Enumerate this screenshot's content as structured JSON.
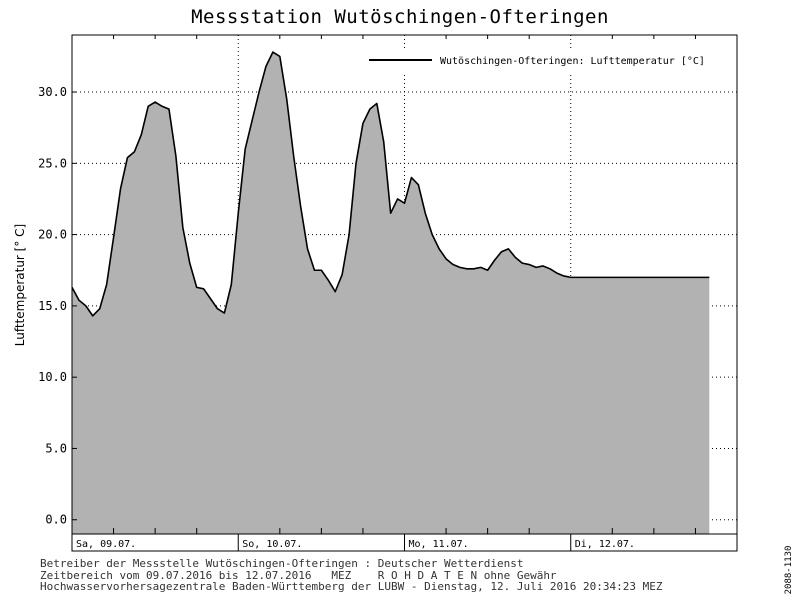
{
  "chart_data": {
    "type": "area",
    "title": "Messstation Wutöschingen-Ofteringen",
    "ylabel": "Lufttemperatur [° C]",
    "xlabel": "",
    "ylim": [
      -1,
      34
    ],
    "yticks": [
      "0.0",
      "5.0",
      "10.0",
      "15.0",
      "20.0",
      "25.0",
      "30.0"
    ],
    "xlim": [
      "2016-07-09 00:00",
      "2016-07-12 24:00"
    ],
    "day_labels": [
      "Sa, 09.07.",
      "So, 10.07.",
      "Mo, 11.07.",
      "Di, 12.07."
    ],
    "grid": true,
    "legend_position": "top-right",
    "series": [
      {
        "name": "Wutöschingen-Ofteringen: Lufttemperatur [°C]",
        "fill_color": "#b2b2b2",
        "line_color": "#000000",
        "x_hours": [
          0,
          1,
          2,
          3,
          4,
          5,
          6,
          7,
          8,
          9,
          10,
          11,
          12,
          13,
          14,
          15,
          16,
          17,
          18,
          19,
          20,
          21,
          22,
          23,
          24,
          25,
          26,
          27,
          28,
          29,
          30,
          31,
          32,
          33,
          34,
          35,
          36,
          37,
          38,
          39,
          40,
          41,
          42,
          43,
          44,
          45,
          46,
          47,
          48,
          49,
          50,
          51,
          52,
          53,
          54,
          55,
          56,
          57,
          58,
          59,
          60,
          61,
          62,
          63,
          64,
          65,
          66,
          67,
          68,
          69,
          70,
          71,
          72,
          73,
          74,
          75,
          76,
          77,
          78,
          79,
          80,
          81,
          82,
          83,
          84,
          85,
          86,
          87,
          88,
          89,
          90,
          91,
          92
        ],
        "values": [
          16.3,
          15.4,
          15.0,
          14.3,
          14.8,
          16.5,
          19.8,
          23.2,
          25.4,
          25.8,
          27.0,
          29.0,
          29.3,
          29.0,
          28.8,
          25.5,
          20.5,
          18.0,
          16.3,
          16.2,
          15.5,
          14.8,
          14.5,
          16.5,
          21.5,
          26.0,
          28.0,
          30.0,
          31.8,
          32.8,
          32.5,
          29.5,
          25.5,
          22.0,
          19.0,
          17.5,
          17.5,
          16.8,
          16.0,
          17.2,
          20.0,
          25.0,
          27.8,
          28.8,
          29.2,
          26.5,
          21.5,
          22.5,
          22.2,
          24.0,
          23.5,
          21.5,
          20.0,
          19.0,
          18.3,
          17.9,
          17.7,
          17.6,
          17.6,
          17.7,
          17.5,
          18.2,
          18.8,
          19.0,
          18.4,
          18.0,
          17.9,
          17.7,
          17.8,
          17.6,
          17.3,
          17.1,
          17.0,
          17.0,
          17.0,
          17.0,
          17.0,
          17.0,
          17.0,
          17.0,
          17.0,
          17.0,
          17.0,
          17.0,
          17.0,
          17.0,
          17.0,
          17.0,
          17.0,
          17.0,
          17.0,
          17.0,
          17.0
        ]
      }
    ]
  },
  "footer": {
    "line1": "Betreiber der Messstelle Wutöschingen-Ofteringen : Deutscher Wetterdienst",
    "line2": "Zeitbereich vom 09.07.2016 bis 12.07.2016   MEZ    R O H D A T E N ohne Gewähr",
    "line3": "Hochwasservorhersagezentrale Baden-Württemberg der LUBW - Dienstag, 12. Juli 2016 20:34:23 MEZ"
  },
  "side_code": "2088-1130"
}
